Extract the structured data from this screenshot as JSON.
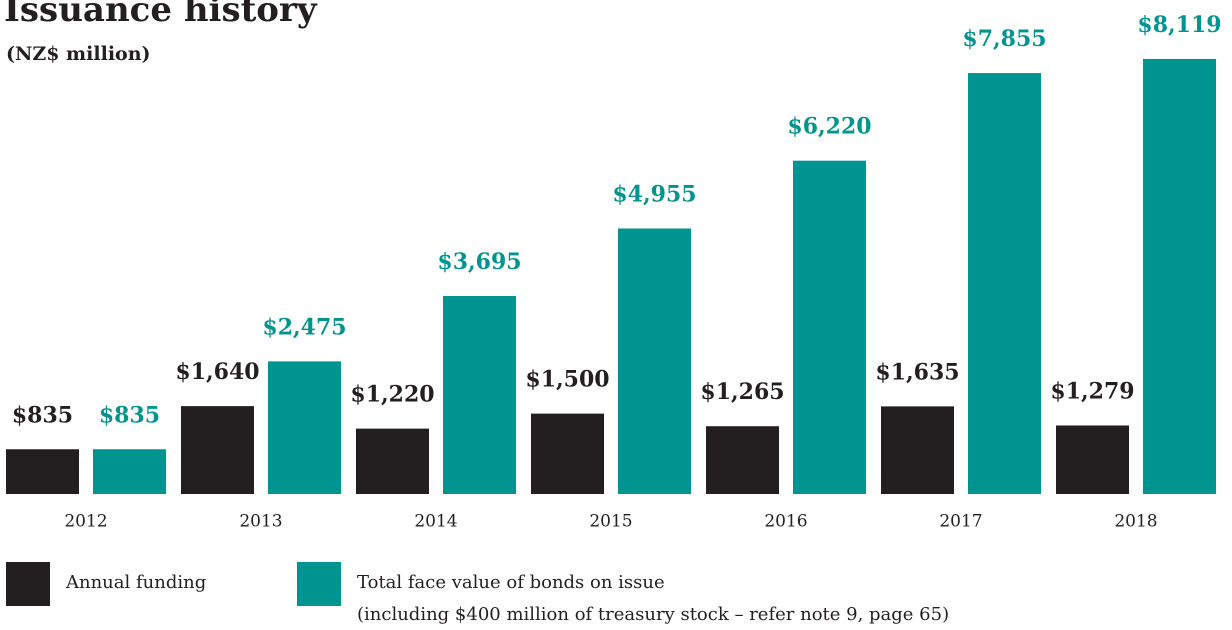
{
  "chart_data": {
    "type": "bar",
    "title": "Issuance history",
    "subtitle": "(NZ$ million)",
    "categories": [
      "2012",
      "2013",
      "2014",
      "2015",
      "2016",
      "2017",
      "2018"
    ],
    "series": [
      {
        "name": "Annual funding",
        "color": "#231f20",
        "values": [
          835,
          1640,
          1220,
          1500,
          1265,
          1635,
          1279
        ],
        "value_labels": [
          "$835",
          "$1,640",
          "$1,220",
          "$1,500",
          "$1,265",
          "$1,635",
          "$1,279"
        ]
      },
      {
        "name": "Total face value of bonds on issue",
        "color": "#009490",
        "values": [
          835,
          2475,
          3695,
          4955,
          6220,
          7855,
          8119
        ],
        "value_labels": [
          "$835",
          "$2,475",
          "$3,695",
          "$4,955",
          "$6,220",
          "$7,855",
          "$8,119"
        ]
      }
    ],
    "note": "(including $400 million of treasury stock – refer note 9, page 65)",
    "ylim": [
      0,
      9200
    ]
  }
}
